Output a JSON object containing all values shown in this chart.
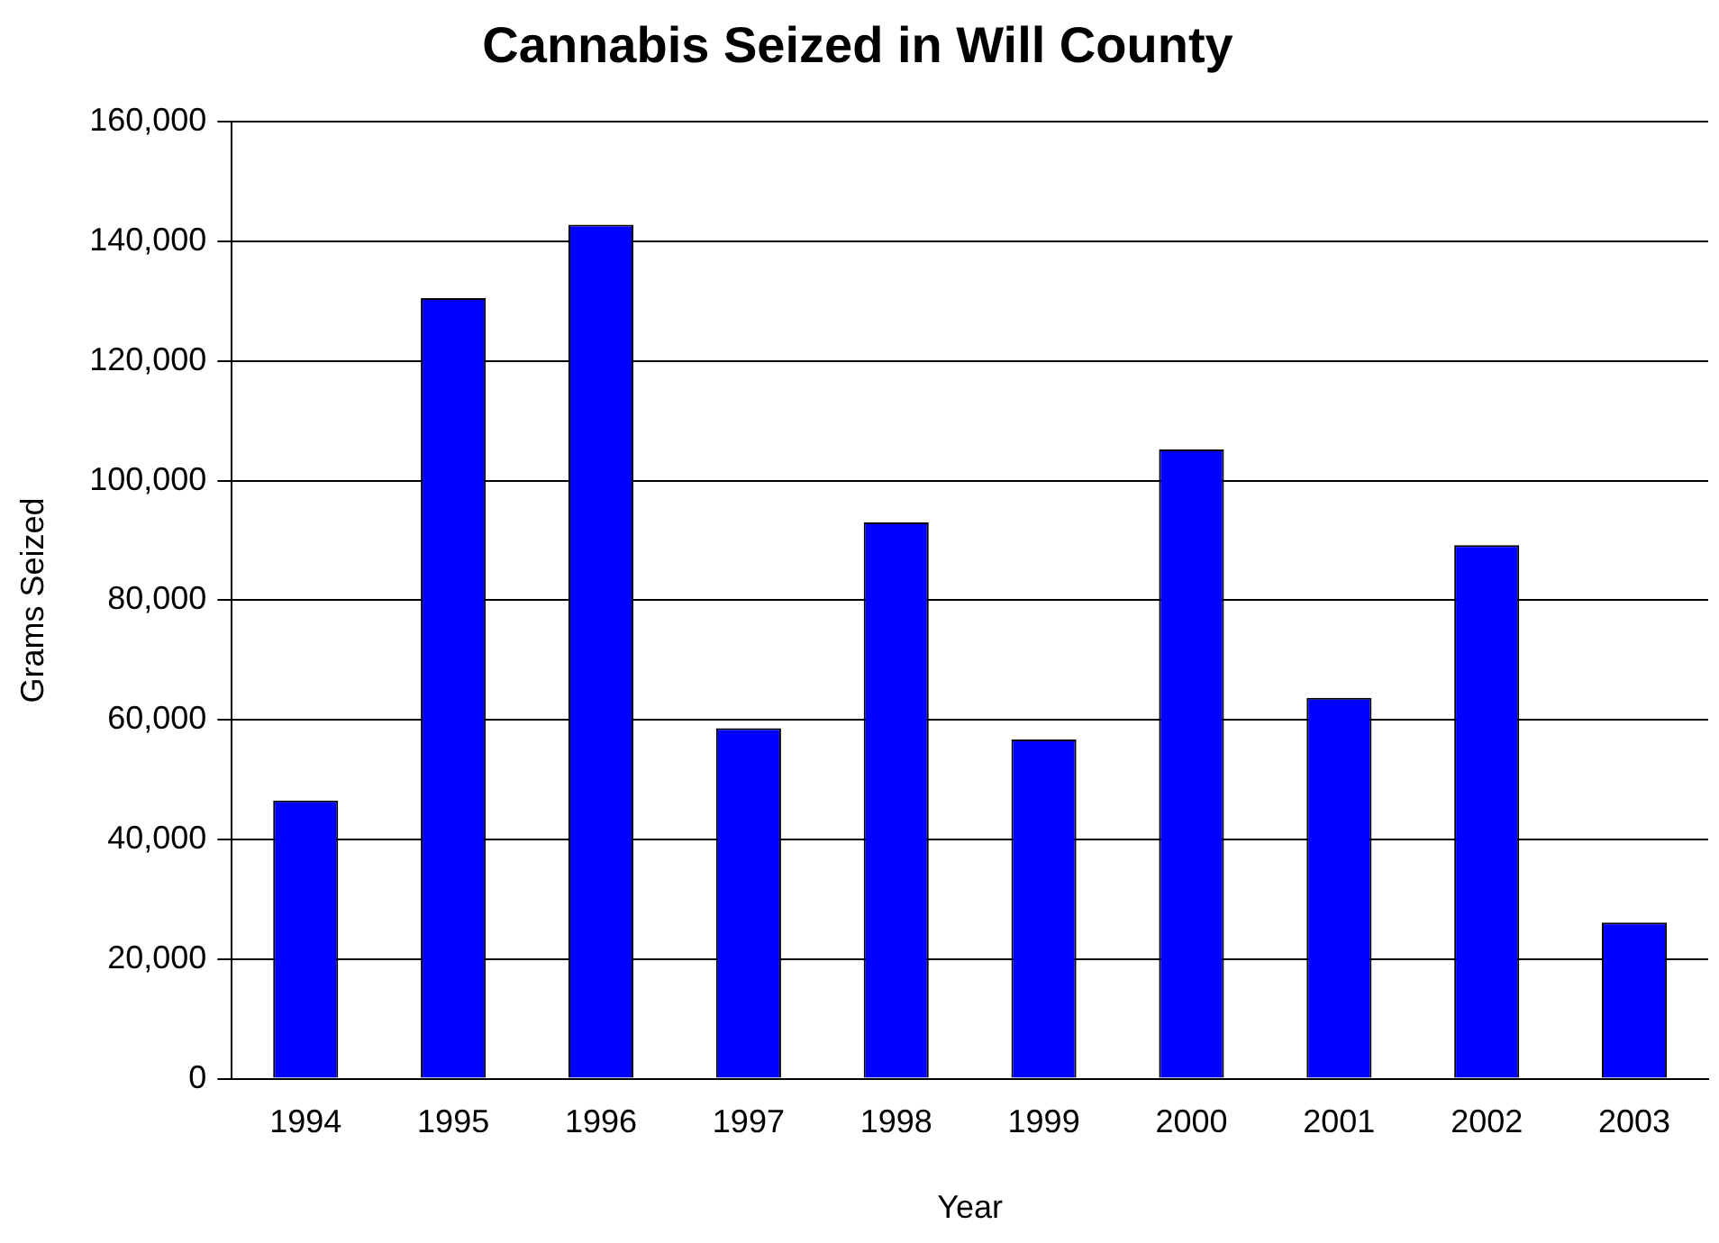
{
  "chart_data": {
    "type": "bar",
    "title": "Cannabis Seized in Will County",
    "xlabel": "Year",
    "ylabel": "Grams Seized",
    "categories": [
      "1994",
      "1995",
      "1996",
      "1997",
      "1998",
      "1999",
      "2000",
      "2001",
      "2002",
      "2003"
    ],
    "values": [
      46500,
      130500,
      142800,
      58600,
      93000,
      56700,
      105200,
      63700,
      89200,
      26100
    ],
    "color": "#0000ff",
    "ylim": [
      0,
      160000
    ],
    "yticks": [
      0,
      {
        "value": 20000,
        "label": "20,000"
      },
      {
        "value": 40000,
        "label": "40,000"
      },
      {
        "value": 60000,
        "label": "60,000"
      },
      {
        "value": 80000,
        "label": "80,000"
      },
      {
        "value": 100000,
        "label": "100,000"
      },
      {
        "value": 120000,
        "label": "120,000"
      },
      {
        "value": 140000,
        "label": "140,000"
      },
      {
        "value": 160000,
        "label": "160,000"
      }
    ],
    "grid": "y",
    "legend": false
  }
}
